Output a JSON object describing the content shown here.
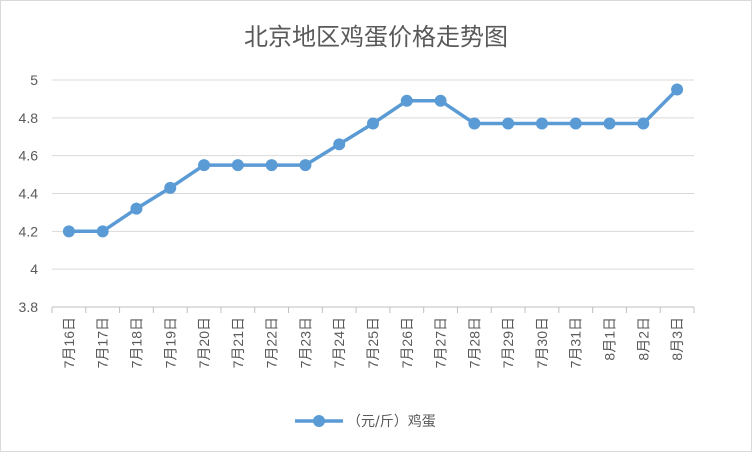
{
  "chart_data": {
    "type": "line",
    "title": "北京地区鸡蛋价格走势图",
    "xlabel": "",
    "ylabel": "",
    "categories": [
      "7月16日",
      "7月17日",
      "7月18日",
      "7月19日",
      "7月20日",
      "7月21日",
      "7月22日",
      "7月23日",
      "7月24日",
      "7月25日",
      "7月26日",
      "7月27日",
      "7月28日",
      "7月29日",
      "7月30日",
      "7月31日",
      "8月1日",
      "8月2日",
      "8月3日"
    ],
    "series": [
      {
        "name": "（元/斤）鸡蛋",
        "values": [
          4.2,
          4.2,
          4.32,
          4.43,
          4.55,
          4.55,
          4.55,
          4.55,
          4.66,
          4.77,
          4.89,
          4.89,
          4.77,
          4.77,
          4.77,
          4.77,
          4.77,
          4.77,
          4.95
        ],
        "color": "#5b9bd5"
      }
    ],
    "ylim": [
      3.8,
      5
    ],
    "yticks": [
      "3.8",
      "4",
      "4.2",
      "4.4",
      "4.6",
      "4.8",
      "5"
    ],
    "grid": true,
    "legend": "bottom"
  },
  "gridline_color": "#d9d9d9",
  "axis_color": "#bfbfbf"
}
